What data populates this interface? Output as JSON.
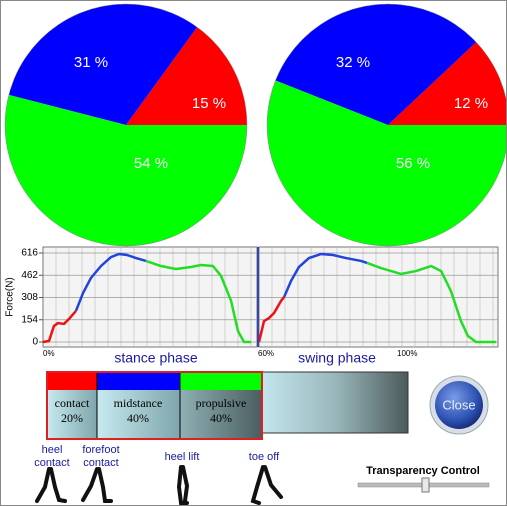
{
  "chart_data": [
    {
      "type": "pie",
      "values": [
        15,
        31,
        54
      ],
      "value_labels": [
        "15 %",
        "31 %",
        "54 %"
      ],
      "colors": [
        "#ff0000",
        "#0000ff",
        "#00ff00"
      ]
    },
    {
      "type": "pie",
      "values": [
        12,
        32,
        56
      ],
      "value_labels": [
        "12 %",
        "32 %",
        "56 %"
      ],
      "colors": [
        "#ff0000",
        "#0000ff",
        "#00ff00"
      ]
    },
    {
      "type": "line",
      "ylabel": "Force(N)",
      "ylim": [
        0,
        616
      ],
      "yticks": [
        0,
        154,
        308,
        462,
        616
      ],
      "xlim": [
        0,
        100
      ],
      "grid": true,
      "panels": [
        {
          "series": [
            {
              "color": "#ee1111",
              "x": [
                0,
                2.8,
                5.1,
                7.0,
                9.8,
                12.1,
                15.4
              ],
              "values": [
                0,
                7,
                111,
                131,
                125,
                159,
                215
              ]
            },
            {
              "color": "#2244dd",
              "x": [
                15.4,
                18.7,
                22.4,
                27.1,
                31.8,
                35.5,
                39.3,
                43.5,
                48.1
              ],
              "values": [
                215,
                339,
                443,
                526,
                588,
                609,
                602,
                581,
                561
              ]
            },
            {
              "color": "#22dd22",
              "x": [
                48.1,
                55.1,
                62.1,
                69.2,
                73.8,
                79.4,
                83.2,
                87.9,
                91.1,
                93.9,
                97.2
              ],
              "values": [
                561,
                526,
                505,
                519,
                533,
                526,
                457,
                284,
                76,
                0,
                0
              ]
            }
          ]
        },
        {
          "series": [
            {
              "color": "#ee1111",
              "x": [
                0,
                2.1,
                4.2,
                6.3,
                9.2,
                10.5
              ],
              "values": [
                0,
                145,
                166,
                201,
                284,
                311
              ]
            },
            {
              "color": "#2244dd",
              "x": [
                10.5,
                13.4,
                16.7,
                20.9,
                25.9,
                31.0,
                36.4,
                42.7,
                45.2
              ],
              "values": [
                311,
                422,
                519,
                581,
                609,
                602,
                581,
                561,
                547
              ]
            },
            {
              "color": "#22dd22",
              "x": [
                45.2,
                51.0,
                59.4,
                65.7,
                72.0,
                76.2,
                80.3,
                84.5,
                87.4,
                90.8,
                99.2
              ],
              "values": [
                547,
                512,
                471,
                491,
                526,
                491,
                353,
                145,
                42,
                0,
                0
              ]
            }
          ]
        }
      ]
    }
  ],
  "phases": {
    "stance": {
      "title": "stance phase",
      "start": "0%",
      "segments": [
        {
          "label": "contact",
          "percent": "20%"
        },
        {
          "label": "midstance",
          "percent": "40%"
        },
        {
          "label": "propulsive",
          "percent": "40%"
        }
      ]
    },
    "swing": {
      "title": "swing phase",
      "start": "60%",
      "end": "100%"
    }
  },
  "close_button": "Close",
  "events": [
    "heel contact",
    "forefoot contact",
    "heel lift",
    "toe off"
  ],
  "transparency_label": "Transparency Control"
}
